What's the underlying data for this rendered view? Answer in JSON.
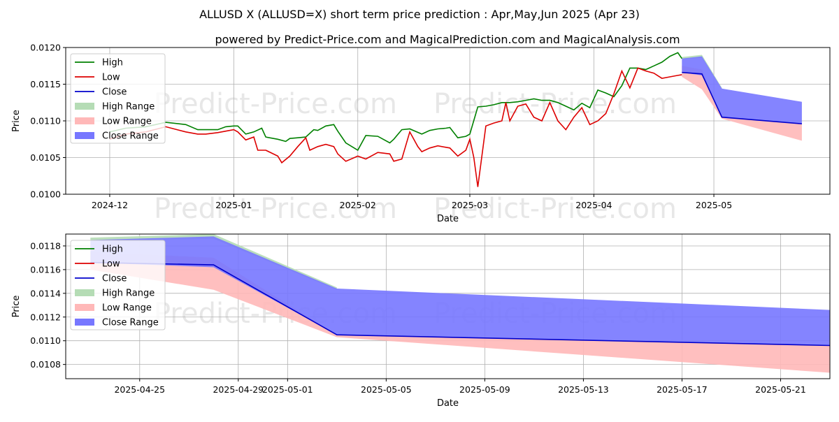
{
  "chart_data": {
    "title": "ALLUSD X (ALLUSD=X) short term price prediction : Apr,May,Jun 2025 (Apr 23)",
    "subtitle": "powered by Predict-Price.com and MagicalPrediction.com and MagicalAnalysis.com",
    "watermark": "Predict-Price.com",
    "colors": {
      "high": "#008000",
      "low": "#dd0000",
      "close": "#0000cc",
      "high_range": "#b5dcb5",
      "low_range": "#ffb8b8",
      "close_range": "#7777ff"
    },
    "charts": [
      {
        "type": "line",
        "name": "history",
        "xlabel": "Date",
        "ylabel": "Price",
        "xlim": [
          "2024-11-20",
          "2025-05-30"
        ],
        "ylim": [
          0.01,
          0.012
        ],
        "grid": true,
        "legend_position": "top-left",
        "x_ticks": [
          "2024-12",
          "2025-01",
          "2025-02",
          "2025-03",
          "2025-04",
          "2025-05"
        ],
        "y_ticks": [
          "0.0100",
          "0.0105",
          "0.0110",
          "0.0115",
          "0.0120"
        ],
        "legend": [
          "High",
          "Low",
          "Close",
          "High Range",
          "Low Range",
          "Close Range"
        ],
        "series": [
          {
            "name": "High",
            "x": [
              "2024-12-01",
              "2024-12-05",
              "2024-12-10",
              "2024-12-15",
              "2024-12-20",
              "2024-12-23",
              "2024-12-25",
              "2024-12-28",
              "2024-12-30",
              "2025-01-01",
              "2025-01-02",
              "2025-01-04",
              "2025-01-06",
              "2025-01-08",
              "2025-01-09",
              "2025-01-12",
              "2025-01-14",
              "2025-01-15",
              "2025-01-17",
              "2025-01-19",
              "2025-01-21",
              "2025-01-22",
              "2025-01-24",
              "2025-01-26",
              "2025-01-27",
              "2025-01-29",
              "2025-02-01",
              "2025-02-03",
              "2025-02-06",
              "2025-02-09",
              "2025-02-10",
              "2025-02-12",
              "2025-02-14",
              "2025-02-17",
              "2025-02-19",
              "2025-02-21",
              "2025-02-23",
              "2025-02-24",
              "2025-02-26",
              "2025-02-28",
              "2025-03-01",
              "2025-03-03",
              "2025-03-05",
              "2025-03-07",
              "2025-03-09",
              "2025-03-11",
              "2025-03-13",
              "2025-03-15",
              "2025-03-17",
              "2025-03-19",
              "2025-03-21",
              "2025-03-23",
              "2025-03-25",
              "2025-03-27",
              "2025-03-29",
              "2025-03-31",
              "2025-04-02",
              "2025-04-04",
              "2025-04-06",
              "2025-04-08",
              "2025-04-10",
              "2025-04-12",
              "2025-04-14",
              "2025-04-16",
              "2025-04-18",
              "2025-04-20",
              "2025-04-22",
              "2025-04-23"
            ],
            "y": [
              0.01085,
              0.0109,
              0.01092,
              0.01098,
              0.01095,
              0.01088,
              0.01088,
              0.01088,
              0.01092,
              0.01093,
              0.01093,
              0.01082,
              0.01085,
              0.0109,
              0.01078,
              0.01075,
              0.01072,
              0.01076,
              0.01077,
              0.01078,
              0.01088,
              0.01087,
              0.01093,
              0.01095,
              0.01086,
              0.0107,
              0.0106,
              0.0108,
              0.01079,
              0.0107,
              0.01075,
              0.01088,
              0.01089,
              0.01082,
              0.01087,
              0.01089,
              0.0109,
              0.01091,
              0.01077,
              0.01079,
              0.01082,
              0.01119,
              0.0112,
              0.01122,
              0.01125,
              0.01125,
              0.01126,
              0.01128,
              0.0113,
              0.01128,
              0.01128,
              0.01125,
              0.0112,
              0.01115,
              0.01124,
              0.01118,
              0.01142,
              0.01138,
              0.01133,
              0.01148,
              0.01172,
              0.01172,
              0.0117,
              0.01175,
              0.0118,
              0.01188,
              0.01193,
              0.01185
            ]
          },
          {
            "name": "Low",
            "x": [
              "2024-12-01",
              "2024-12-05",
              "2024-12-10",
              "2024-12-15",
              "2024-12-20",
              "2024-12-23",
              "2024-12-25",
              "2024-12-28",
              "2024-12-30",
              "2025-01-01",
              "2025-01-02",
              "2025-01-04",
              "2025-01-06",
              "2025-01-07",
              "2025-01-09",
              "2025-01-12",
              "2025-01-13",
              "2025-01-15",
              "2025-01-17",
              "2025-01-19",
              "2025-01-20",
              "2025-01-22",
              "2025-01-24",
              "2025-01-26",
              "2025-01-27",
              "2025-01-29",
              "2025-02-01",
              "2025-02-03",
              "2025-02-06",
              "2025-02-09",
              "2025-02-10",
              "2025-02-12",
              "2025-02-14",
              "2025-02-16",
              "2025-02-17",
              "2025-02-19",
              "2025-02-21",
              "2025-02-23",
              "2025-02-24",
              "2025-02-26",
              "2025-02-28",
              "2025-03-01",
              "2025-03-02",
              "2025-03-03",
              "2025-03-05",
              "2025-03-07",
              "2025-03-09",
              "2025-03-10",
              "2025-03-11",
              "2025-03-13",
              "2025-03-15",
              "2025-03-17",
              "2025-03-19",
              "2025-03-21",
              "2025-03-23",
              "2025-03-25",
              "2025-03-27",
              "2025-03-29",
              "2025-03-31",
              "2025-04-02",
              "2025-04-04",
              "2025-04-06",
              "2025-04-08",
              "2025-04-10",
              "2025-04-12",
              "2025-04-14",
              "2025-04-16",
              "2025-04-18",
              "2025-04-20",
              "2025-04-22",
              "2025-04-23"
            ],
            "y": [
              0.01075,
              0.01082,
              0.01085,
              0.01092,
              0.01085,
              0.01082,
              0.01082,
              0.01084,
              0.01086,
              0.01088,
              0.01085,
              0.01074,
              0.01078,
              0.0106,
              0.0106,
              0.01052,
              0.01043,
              0.01052,
              0.01065,
              0.01077,
              0.0106,
              0.01065,
              0.01068,
              0.01065,
              0.01055,
              0.01045,
              0.01052,
              0.01048,
              0.01057,
              0.01055,
              0.01045,
              0.01048,
              0.01085,
              0.01065,
              0.01058,
              0.01063,
              0.01066,
              0.01064,
              0.01063,
              0.01052,
              0.0106,
              0.01075,
              0.0105,
              0.0101,
              0.01093,
              0.01097,
              0.011,
              0.01125,
              0.011,
              0.0112,
              0.01123,
              0.01105,
              0.011,
              0.01125,
              0.011,
              0.01088,
              0.01105,
              0.01118,
              0.01095,
              0.011,
              0.0111,
              0.01137,
              0.01168,
              0.01145,
              0.01172,
              0.01168,
              0.01165,
              0.01158,
              0.0116,
              0.01162,
              0.01163
            ]
          }
        ]
      },
      {
        "type": "area",
        "name": "prediction",
        "xlabel": "Date",
        "ylabel": "Price",
        "xlim": [
          "2025-04-22",
          "2025-05-23"
        ],
        "ylim": [
          0.01068,
          0.0119
        ],
        "grid": true,
        "legend_position": "top-left",
        "x_ticks": [
          "2025-04-25",
          "2025-04-29",
          "2025-05-01",
          "2025-05-05",
          "2025-05-09",
          "2025-05-13",
          "2025-05-17",
          "2025-05-21"
        ],
        "y_ticks": [
          "0.0108",
          "0.0110",
          "0.0112",
          "0.0114",
          "0.0116",
          "0.0118"
        ],
        "legend": [
          "High",
          "Low",
          "Close",
          "High Range",
          "Low Range",
          "Close Range"
        ],
        "close": {
          "x": [
            "2025-04-23",
            "2025-04-28",
            "2025-05-03",
            "2025-05-23"
          ],
          "y": [
            0.01166,
            0.01164,
            0.01105,
            0.01096
          ]
        },
        "close_range": {
          "x": [
            "2025-04-23",
            "2025-04-28",
            "2025-05-03",
            "2025-05-23"
          ],
          "upper": [
            0.01185,
            0.01188,
            0.01144,
            0.01126
          ],
          "lower": [
            0.01166,
            0.01162,
            0.01105,
            0.01096
          ]
        },
        "low_range": {
          "x": [
            "2025-04-23",
            "2025-04-28",
            "2025-05-03",
            "2025-05-23"
          ],
          "upper": [
            0.01175,
            0.0117,
            0.01105,
            0.01096
          ],
          "lower": [
            0.0116,
            0.01143,
            0.01103,
            0.01073
          ]
        },
        "high_range": {
          "x": [
            "2025-04-23",
            "2025-04-28",
            "2025-05-03"
          ],
          "upper": [
            0.01187,
            0.0119,
            0.01145
          ],
          "lower": [
            0.01184,
            0.01186,
            0.01143
          ]
        }
      }
    ]
  }
}
